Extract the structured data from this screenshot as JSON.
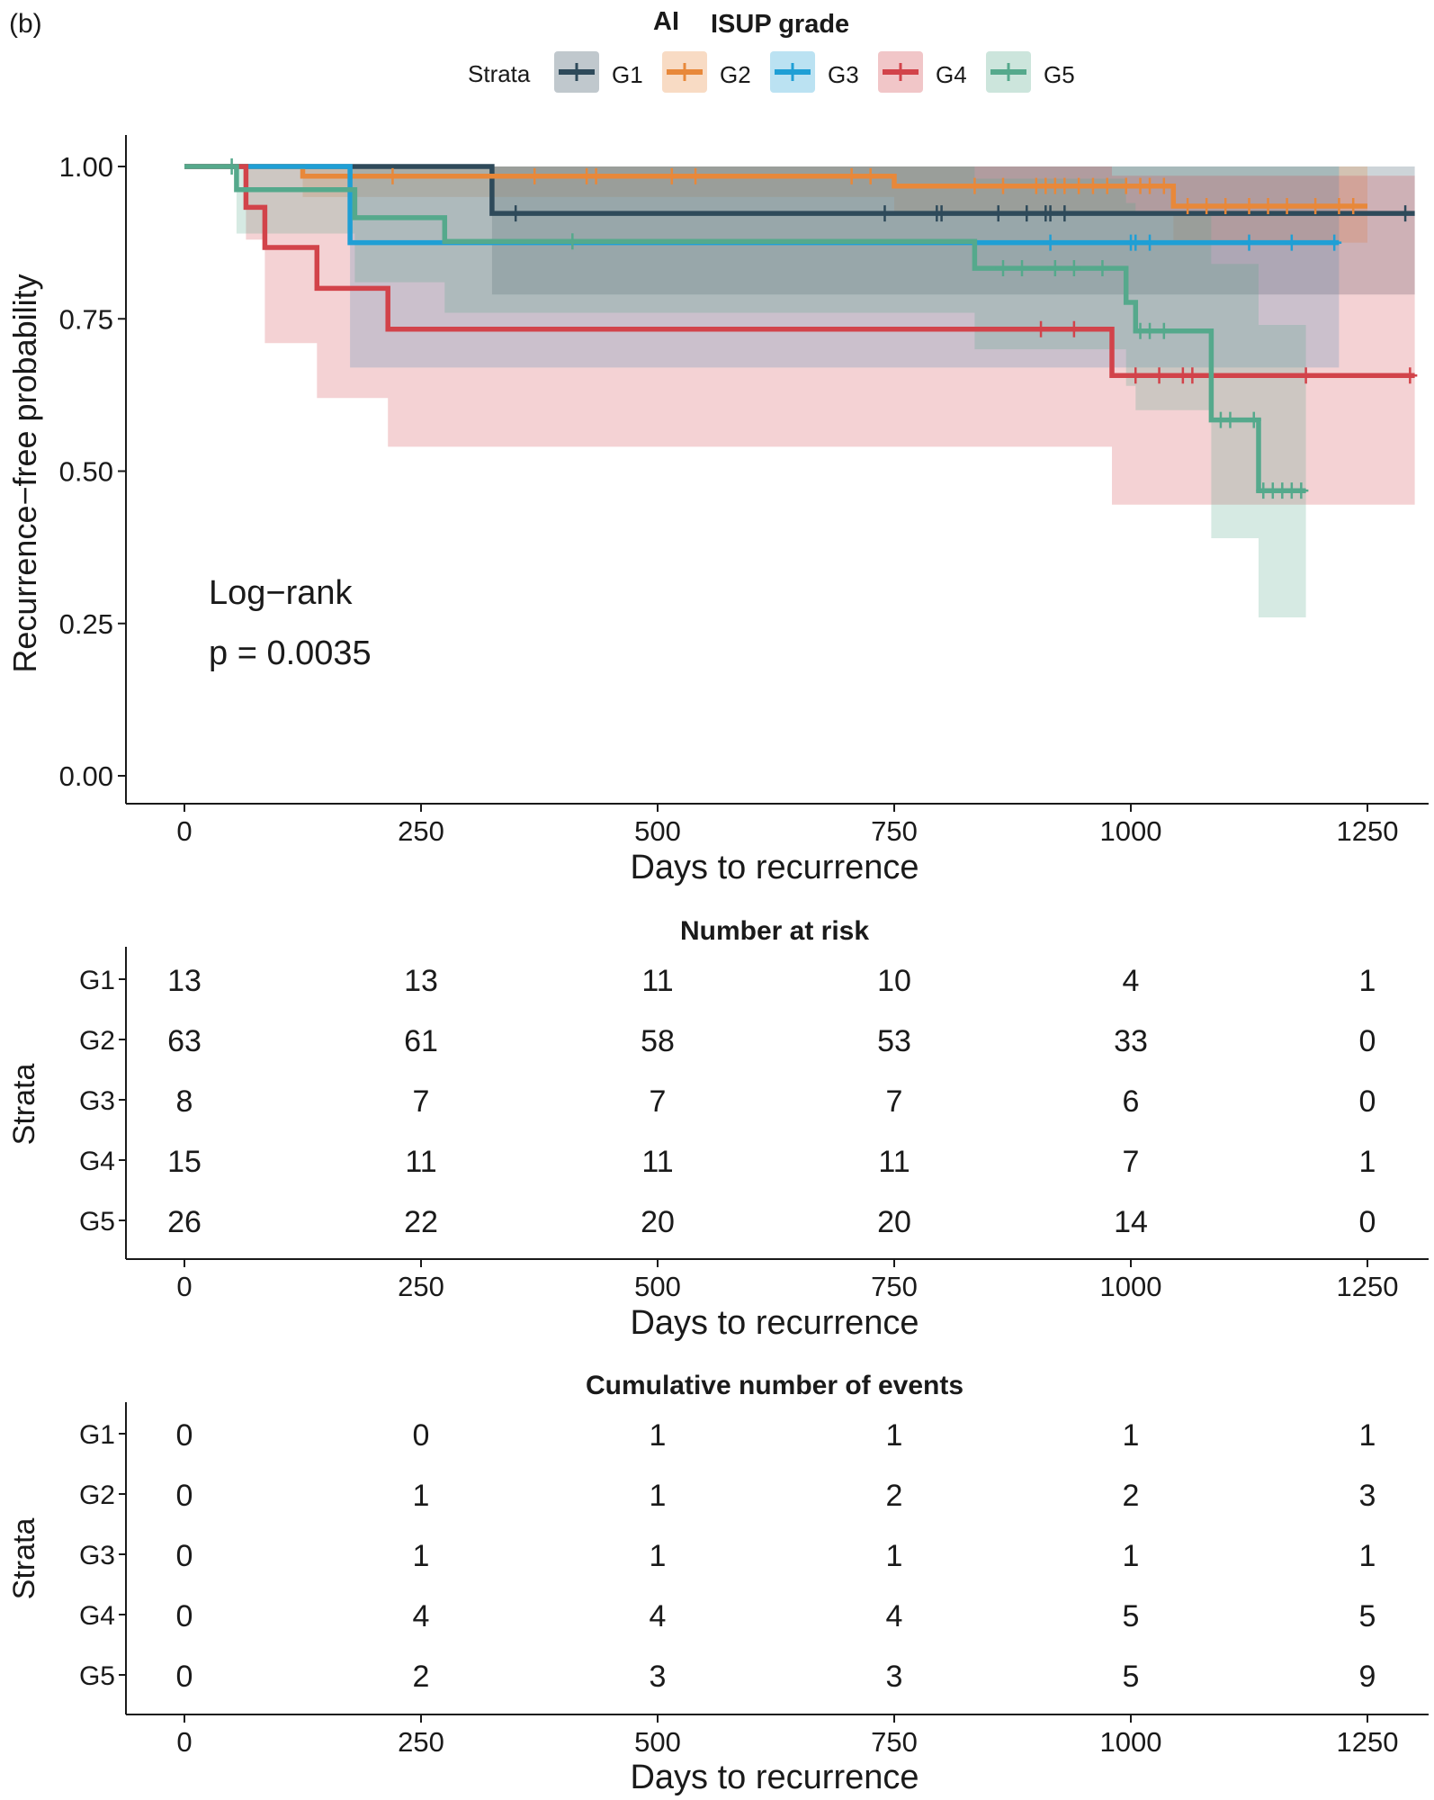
{
  "panel_label": "(b)",
  "chart_data": [
    {
      "type": "line",
      "subtype": "kaplan-meier",
      "title_prefix": "AI",
      "title": "ISUP grade",
      "legend_title": "Strata",
      "legend_position": "top",
      "xlabel": "Days to recurrence",
      "ylabel": "Recurrence−free probability",
      "xlim": [
        0,
        1300
      ],
      "ylim": [
        0,
        1
      ],
      "xticks": [
        0,
        250,
        500,
        750,
        1000,
        1250
      ],
      "xtick_labels": [
        "0",
        "250",
        "500",
        "750",
        "1000",
        "1250"
      ],
      "yticks": [
        0,
        0.25,
        0.5,
        0.75,
        1
      ],
      "ytick_labels": [
        "0.00",
        "0.25",
        "0.50",
        "0.75",
        "1.00"
      ],
      "annotation": {
        "line1": "Log−rank",
        "line2": "p = 0.0035"
      },
      "series": [
        {
          "name": "G1",
          "color": "#2e4a5a",
          "steps": [
            [
              0,
              1.0
            ],
            [
              325,
              0.923
            ],
            [
              1300,
              0.923
            ]
          ],
          "ci": [
            [
              0,
              1,
              1
            ],
            [
              325,
              0.79,
              1
            ],
            [
              1300,
              0.79,
              1
            ]
          ],
          "censor": [
            [
              350,
              0.923
            ],
            [
              740,
              0.923
            ],
            [
              795,
              0.923
            ],
            [
              800,
              0.923
            ],
            [
              860,
              0.923
            ],
            [
              890,
              0.923
            ],
            [
              910,
              0.923
            ],
            [
              915,
              0.923
            ],
            [
              930,
              0.923
            ],
            [
              1290,
              0.923
            ]
          ]
        },
        {
          "name": "G2",
          "color": "#e8883a",
          "steps": [
            [
              0,
              1.0
            ],
            [
              125,
              0.984
            ],
            [
              750,
              0.968
            ],
            [
              1045,
              0.935
            ],
            [
              1250,
              0.935
            ]
          ],
          "ci": [
            [
              0,
              1,
              1
            ],
            [
              125,
              0.95,
              1
            ],
            [
              750,
              0.92,
              1
            ],
            [
              1045,
              0.875,
              1
            ],
            [
              1250,
              0.875,
              1
            ]
          ],
          "censor": [
            [
              220,
              0.984
            ],
            [
              370,
              0.984
            ],
            [
              425,
              0.984
            ],
            [
              435,
              0.984
            ],
            [
              515,
              0.984
            ],
            [
              540,
              0.984
            ],
            [
              705,
              0.984
            ],
            [
              725,
              0.984
            ],
            [
              835,
              0.968
            ],
            [
              865,
              0.968
            ],
            [
              900,
              0.968
            ],
            [
              910,
              0.968
            ],
            [
              920,
              0.968
            ],
            [
              930,
              0.968
            ],
            [
              945,
              0.968
            ],
            [
              960,
              0.968
            ],
            [
              975,
              0.968
            ],
            [
              995,
              0.968
            ],
            [
              1010,
              0.968
            ],
            [
              1020,
              0.968
            ],
            [
              1035,
              0.968
            ],
            [
              1060,
              0.935
            ],
            [
              1080,
              0.935
            ],
            [
              1100,
              0.935
            ],
            [
              1125,
              0.935
            ],
            [
              1145,
              0.935
            ],
            [
              1165,
              0.935
            ],
            [
              1195,
              0.935
            ],
            [
              1220,
              0.935
            ],
            [
              1235,
              0.935
            ]
          ]
        },
        {
          "name": "G3",
          "color": "#1f9fd5",
          "steps": [
            [
              0,
              1.0
            ],
            [
              175,
              0.875
            ],
            [
              1220,
              0.875
            ]
          ],
          "ci": [
            [
              0,
              1,
              1
            ],
            [
              175,
              0.67,
              1
            ],
            [
              1220,
              0.67,
              1
            ]
          ],
          "censor": [
            [
              915,
              0.875
            ],
            [
              1000,
              0.875
            ],
            [
              1005,
              0.875
            ],
            [
              1020,
              0.875
            ],
            [
              1125,
              0.875
            ],
            [
              1170,
              0.875
            ],
            [
              1215,
              0.875
            ]
          ]
        },
        {
          "name": "G4",
          "color": "#d2434a",
          "steps": [
            [
              0,
              1.0
            ],
            [
              65,
              0.933
            ],
            [
              85,
              0.867
            ],
            [
              140,
              0.8
            ],
            [
              215,
              0.733
            ],
            [
              980,
              0.657
            ],
            [
              1300,
              0.657
            ]
          ],
          "ci": [
            [
              0,
              1,
              1
            ],
            [
              65,
              0.88,
              1
            ],
            [
              85,
              0.71,
              1
            ],
            [
              140,
              0.62,
              1
            ],
            [
              215,
              0.54,
              1
            ],
            [
              980,
              0.445,
              0.985
            ],
            [
              1300,
              0.445,
              0.985
            ]
          ],
          "censor": [
            [
              905,
              0.733
            ],
            [
              940,
              0.733
            ],
            [
              1005,
              0.657
            ],
            [
              1030,
              0.657
            ],
            [
              1055,
              0.657
            ],
            [
              1065,
              0.657
            ],
            [
              1185,
              0.657
            ],
            [
              1295,
              0.657
            ]
          ]
        },
        {
          "name": "G5",
          "color": "#55a98c",
          "steps": [
            [
              0,
              1.0
            ],
            [
              55,
              0.962
            ],
            [
              180,
              0.916
            ],
            [
              275,
              0.877
            ],
            [
              835,
              0.833
            ],
            [
              995,
              0.777
            ],
            [
              1005,
              0.73
            ],
            [
              1085,
              0.584
            ],
            [
              1135,
              0.468
            ],
            [
              1185,
              0.468
            ]
          ],
          "ci": [
            [
              0,
              1,
              1
            ],
            [
              55,
              0.89,
              1
            ],
            [
              180,
              0.81,
              1
            ],
            [
              275,
              0.76,
              1
            ],
            [
              835,
              0.7,
              0.98
            ],
            [
              995,
              0.64,
              0.94
            ],
            [
              1005,
              0.6,
              0.92
            ],
            [
              1085,
              0.39,
              0.84
            ],
            [
              1135,
              0.26,
              0.74
            ],
            [
              1185,
              0.26,
              0.74
            ]
          ],
          "censor": [
            [
              50,
              1.0
            ],
            [
              410,
              0.877
            ],
            [
              865,
              0.833
            ],
            [
              885,
              0.833
            ],
            [
              920,
              0.833
            ],
            [
              940,
              0.833
            ],
            [
              970,
              0.833
            ],
            [
              1010,
              0.73
            ],
            [
              1020,
              0.73
            ],
            [
              1035,
              0.73
            ],
            [
              1095,
              0.584
            ],
            [
              1105,
              0.584
            ],
            [
              1130,
              0.584
            ],
            [
              1140,
              0.468
            ],
            [
              1150,
              0.468
            ],
            [
              1160,
              0.468
            ],
            [
              1170,
              0.468
            ],
            [
              1180,
              0.468
            ]
          ]
        }
      ]
    },
    {
      "type": "table",
      "title": "Number at risk",
      "ylabel": "Strata",
      "xlabel": "Days to recurrence",
      "xlim": [
        0,
        1300
      ],
      "xticks": [
        0,
        250,
        500,
        750,
        1000,
        1250
      ],
      "xtick_labels": [
        "0",
        "250",
        "500",
        "750",
        "1000",
        "1250"
      ],
      "rows": [
        {
          "name": "G1",
          "color": "#2e4a5a",
          "values": [
            "13",
            "13",
            "11",
            "10",
            "4",
            "1"
          ]
        },
        {
          "name": "G2",
          "color": "#e8883a",
          "values": [
            "63",
            "61",
            "58",
            "53",
            "33",
            "0"
          ]
        },
        {
          "name": "G3",
          "color": "#1f9fd5",
          "values": [
            "8",
            "7",
            "7",
            "7",
            "6",
            "0"
          ]
        },
        {
          "name": "G4",
          "color": "#d2434a",
          "values": [
            "15",
            "11",
            "11",
            "11",
            "7",
            "1"
          ]
        },
        {
          "name": "G5",
          "color": "#55a98c",
          "values": [
            "26",
            "22",
            "20",
            "20",
            "14",
            "0"
          ]
        }
      ]
    },
    {
      "type": "table",
      "title": "Cumulative number of events",
      "ylabel": "Strata",
      "xlabel": "Days to recurrence",
      "xlim": [
        0,
        1300
      ],
      "xticks": [
        0,
        250,
        500,
        750,
        1000,
        1250
      ],
      "xtick_labels": [
        "0",
        "250",
        "500",
        "750",
        "1000",
        "1250"
      ],
      "rows": [
        {
          "name": "G1",
          "color": "#2e4a5a",
          "values": [
            "0",
            "0",
            "1",
            "1",
            "1",
            "1"
          ]
        },
        {
          "name": "G2",
          "color": "#e8883a",
          "values": [
            "0",
            "1",
            "1",
            "2",
            "2",
            "3"
          ]
        },
        {
          "name": "G3",
          "color": "#1f9fd5",
          "values": [
            "0",
            "1",
            "1",
            "1",
            "1",
            "1"
          ]
        },
        {
          "name": "G4",
          "color": "#d2434a",
          "values": [
            "0",
            "4",
            "4",
            "4",
            "5",
            "5"
          ]
        },
        {
          "name": "G5",
          "color": "#55a98c",
          "values": [
            "0",
            "2",
            "3",
            "3",
            "5",
            "9"
          ]
        }
      ]
    }
  ]
}
